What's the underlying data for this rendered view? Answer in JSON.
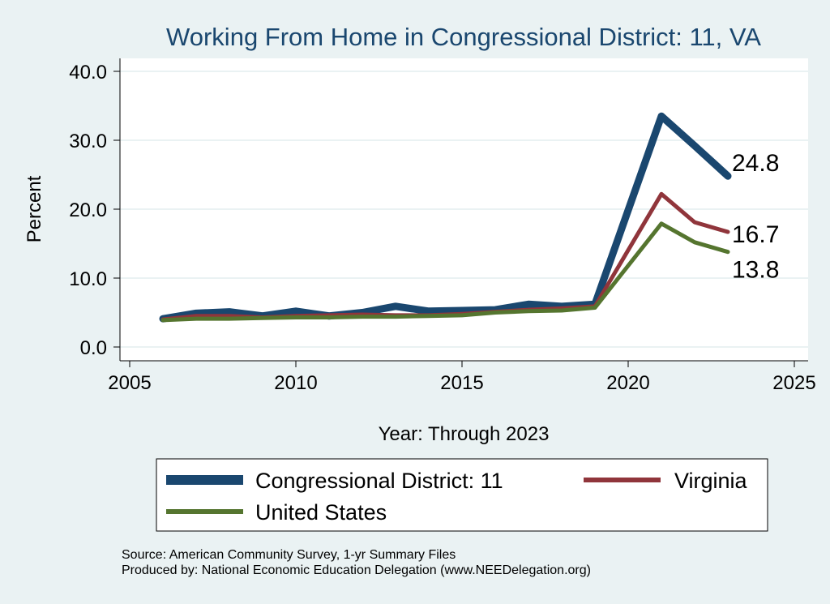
{
  "chart_data": {
    "type": "line",
    "title": "Working From Home in Congressional District: 11, VA",
    "xlabel": "Year: Through 2023",
    "ylabel": "Percent",
    "xlim": [
      2005,
      2025
    ],
    "ylim": [
      0,
      40
    ],
    "xticks": [
      "2005",
      "2010",
      "2015",
      "2020",
      "2025"
    ],
    "yticks": [
      "0.0",
      "10.0",
      "20.0",
      "30.0",
      "40.0"
    ],
    "x": [
      2006,
      2007,
      2008,
      2009,
      2010,
      2011,
      2012,
      2013,
      2014,
      2015,
      2016,
      2017,
      2018,
      2019,
      2021,
      2022,
      2023
    ],
    "series": [
      {
        "name": "Congressional District: 11",
        "color": "#1a476f",
        "values": [
          4.1,
          4.9,
          5.1,
          4.5,
          5.2,
          4.5,
          5.0,
          5.9,
          5.2,
          5.3,
          5.4,
          6.2,
          5.9,
          6.2,
          33.5,
          29.2,
          24.8
        ],
        "end_label": "24.8"
      },
      {
        "name": "Virginia",
        "color": "#90353b",
        "values": [
          4.0,
          4.5,
          4.5,
          4.3,
          4.5,
          4.6,
          4.7,
          4.6,
          4.6,
          4.8,
          5.1,
          5.4,
          5.6,
          5.9,
          22.2,
          18.1,
          16.7
        ],
        "end_label": "16.7"
      },
      {
        "name": "United States",
        "color": "#55752f",
        "values": [
          3.9,
          4.1,
          4.1,
          4.2,
          4.3,
          4.3,
          4.4,
          4.4,
          4.5,
          4.6,
          5.0,
          5.2,
          5.3,
          5.7,
          17.9,
          15.2,
          13.8
        ],
        "end_label": "13.8"
      }
    ],
    "grid": true,
    "legend_position": "bottom"
  },
  "notes": {
    "source": "Source: American Community Survey, 1-yr Summary Files",
    "produced": "Produced by: National Economic Education Delegation (www.NEEDelegation.org)"
  }
}
